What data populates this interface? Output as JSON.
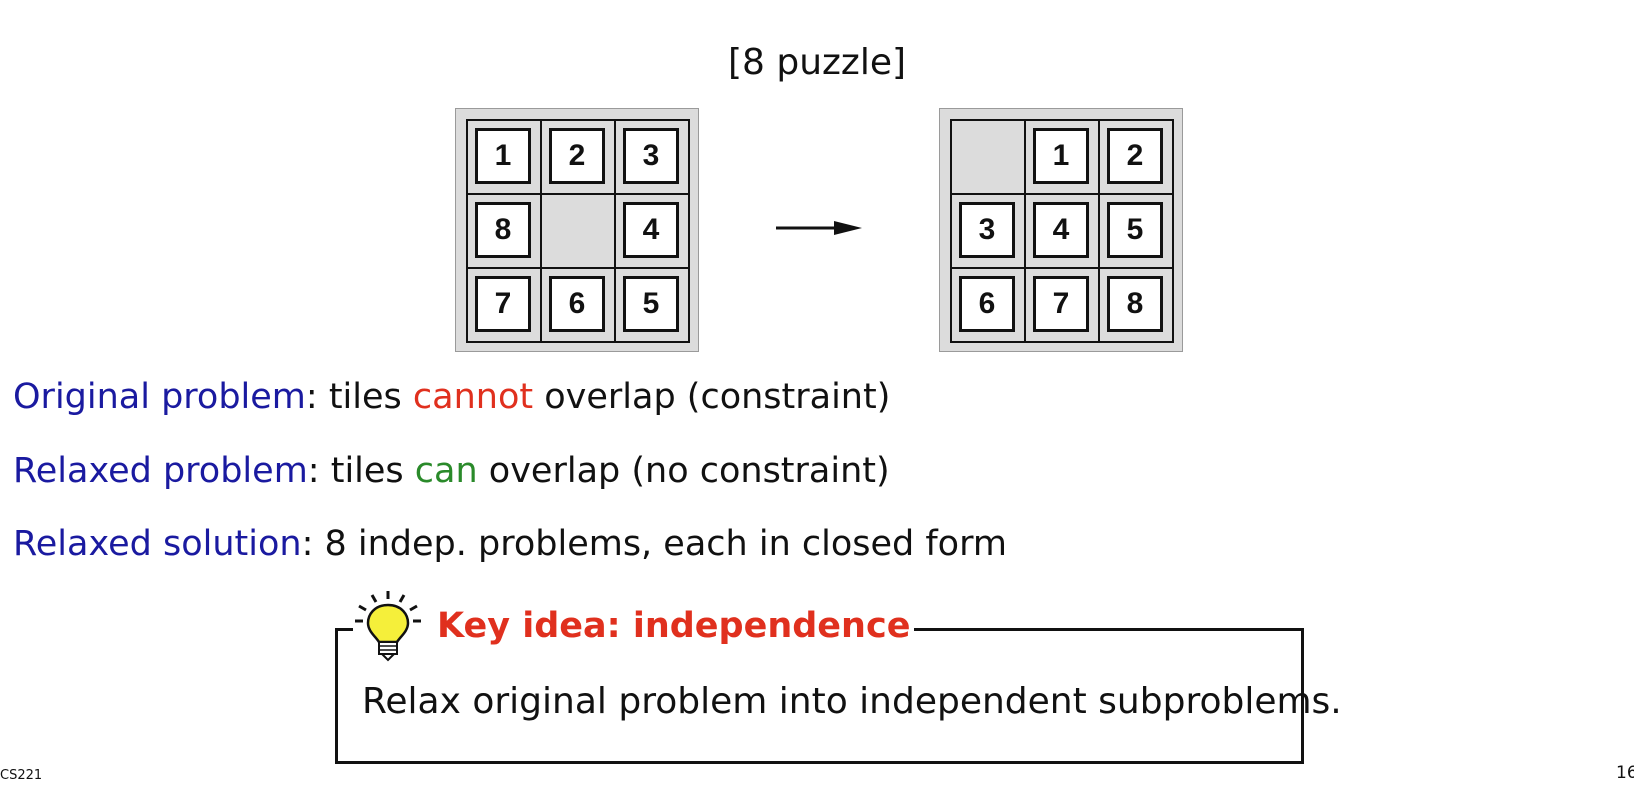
{
  "slide": {
    "title": "[8 puzzle]",
    "start_board": [
      "1",
      "2",
      "3",
      "8",
      "",
      "4",
      "7",
      "6",
      "5"
    ],
    "goal_board": [
      "",
      "1",
      "2",
      "3",
      "4",
      "5",
      "6",
      "7",
      "8"
    ],
    "lines": [
      {
        "term": "Original problem",
        "colon": ":",
        "pre": " tiles ",
        "emph": "cannot",
        "post": " overlap (constraint)"
      },
      {
        "term": "Relaxed problem",
        "colon": ":",
        "pre": " tiles ",
        "emph": "can",
        "post": " overlap (no constraint)"
      },
      {
        "term": "Relaxed solution",
        "colon": ":",
        "rest": " 8 indep. problems, each in closed form"
      }
    ],
    "key_idea": {
      "label": "Key idea: independence",
      "body": "Relax original problem into independent subproblems."
    },
    "footer": {
      "course": "CS221",
      "page": "16"
    }
  },
  "colors": {
    "term": "#1a1aa0",
    "cannot": "#e0301e",
    "can": "#2a8a2a",
    "key_label": "#e0301e",
    "board_bg": "#dcdcdc"
  },
  "icons": {
    "arrow": "right-arrow-icon",
    "bulb": "lightbulb-icon"
  }
}
